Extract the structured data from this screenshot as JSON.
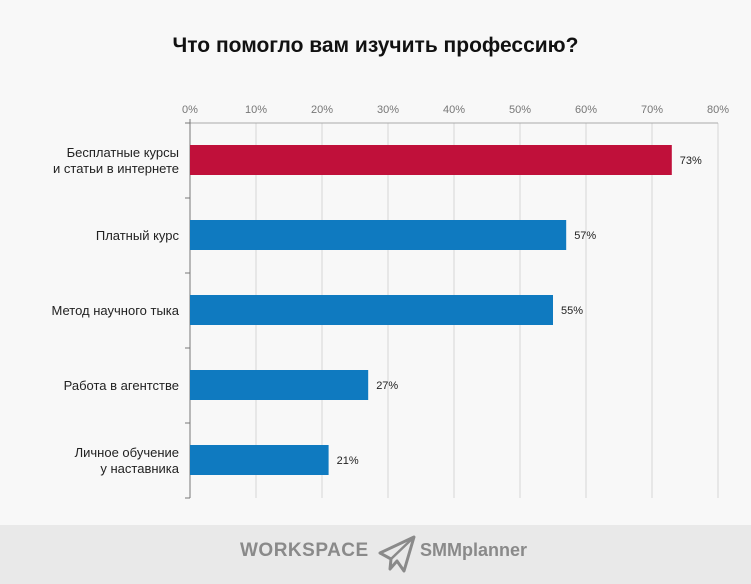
{
  "chart_data": {
    "type": "bar",
    "orientation": "horizontal",
    "title": "Что помогло вам изучить профессию?",
    "categories": [
      "Бесплатные курсы\nи статьи в интернете",
      "Платный курс",
      "Метод научного тыка",
      "Работа в агентстве",
      "Личное обучение\nу наставника"
    ],
    "values": [
      73,
      57,
      55,
      27,
      21
    ],
    "data_labels": [
      "73%",
      "57%",
      "55%",
      "27%",
      "21%"
    ],
    "bar_colors": [
      "#c0103a",
      "#0f7ac0",
      "#0f7ac0",
      "#0f7ac0",
      "#0f7ac0"
    ],
    "xlim": [
      0,
      80
    ],
    "xticks": [
      "0%",
      "10%",
      "20%",
      "30%",
      "40%",
      "50%",
      "60%",
      "70%",
      "80%"
    ],
    "x_axis_position": "top",
    "grid": true,
    "xlabel": "",
    "ylabel": ""
  },
  "footer": {
    "logos": [
      "WORKSPACE",
      "SMMplanner"
    ]
  }
}
